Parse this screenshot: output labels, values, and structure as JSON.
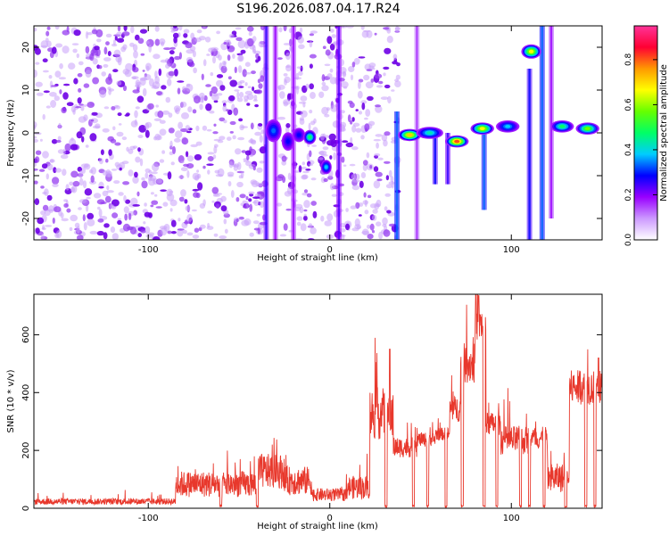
{
  "title": "S196.2026.087.04.17.R24",
  "chart_data": [
    {
      "type": "heatmap",
      "xlabel": "Height of straight line (km)",
      "ylabel": "Frequency (Hz)",
      "xlim": [
        -163,
        150
      ],
      "ylim": [
        -25,
        25
      ],
      "xticks": [
        -100,
        0,
        100
      ],
      "yticks": [
        -20,
        -10,
        0,
        10,
        20
      ],
      "colorbar": {
        "label": "Normalized spectral amplitude",
        "range": [
          0,
          0.95
        ],
        "ticks": [
          "0.0",
          "0.2",
          "0.4",
          "0.6",
          "0.8"
        ],
        "colors": [
          "#ffffff",
          "#cc99ff",
          "#9900ff",
          "#0000ff",
          "#00ccff",
          "#00ff66",
          "#66ff00",
          "#ffff00",
          "#ff9900",
          "#ff0033",
          "#ff3399"
        ]
      },
      "noise_regions_km": [
        [
          -163,
          -35
        ],
        [
          -28,
          -8
        ],
        [
          -5,
          28
        ],
        [
          30,
          38
        ]
      ],
      "columns": [
        {
          "x": -35,
          "ymin": -25,
          "ymax": 25,
          "level": 0.22
        },
        {
          "x": -30,
          "ymin": -25,
          "ymax": 25,
          "level": 0.15
        },
        {
          "x": -20,
          "ymin": -25,
          "ymax": 25,
          "level": 0.15
        },
        {
          "x": 5,
          "ymin": -25,
          "ymax": 25,
          "level": 0.2
        },
        {
          "x": 37,
          "ymin": -25,
          "ymax": 5,
          "level": 0.3
        },
        {
          "x": 48,
          "ymin": -25,
          "ymax": 25,
          "level": 0.12
        },
        {
          "x": 58,
          "ymin": -12,
          "ymax": 0,
          "level": 0.25
        },
        {
          "x": 65,
          "ymin": -12,
          "ymax": 0,
          "level": 0.22
        },
        {
          "x": 85,
          "ymin": -18,
          "ymax": 0,
          "level": 0.3
        },
        {
          "x": 110,
          "ymin": -25,
          "ymax": 15,
          "level": 0.25
        },
        {
          "x": 117,
          "ymin": -25,
          "ymax": 25,
          "level": 0.3
        },
        {
          "x": 122,
          "ymin": -20,
          "ymax": 25,
          "level": 0.15
        }
      ],
      "blobs": [
        {
          "x": -31,
          "y": 0.5,
          "w": 8,
          "h": 5,
          "amp": 0.35
        },
        {
          "x": -23,
          "y": -2.0,
          "w": 6,
          "h": 4,
          "amp": 0.3
        },
        {
          "x": -17,
          "y": -0.5,
          "w": 6,
          "h": 3,
          "amp": 0.3
        },
        {
          "x": -11,
          "y": -1.0,
          "w": 6,
          "h": 3,
          "amp": 0.5
        },
        {
          "x": -2,
          "y": -8.0,
          "w": 5,
          "h": 3,
          "amp": 0.4
        },
        {
          "x": 44,
          "y": -0.5,
          "w": 12,
          "h": 2.5,
          "amp": 0.75
        },
        {
          "x": 55,
          "y": 0.0,
          "w": 14,
          "h": 2.5,
          "amp": 0.45
        },
        {
          "x": 70,
          "y": -2.0,
          "w": 12,
          "h": 2.5,
          "amp": 0.85
        },
        {
          "x": 84,
          "y": 1.0,
          "w": 12,
          "h": 2.5,
          "amp": 0.7
        },
        {
          "x": 98,
          "y": 1.5,
          "w": 12,
          "h": 2.5,
          "amp": 0.4
        },
        {
          "x": 111,
          "y": 19.0,
          "w": 10,
          "h": 3,
          "amp": 0.7
        },
        {
          "x": 128,
          "y": 1.5,
          "w": 12,
          "h": 2.5,
          "amp": 0.5
        },
        {
          "x": 142,
          "y": 1.0,
          "w": 12,
          "h": 2.5,
          "amp": 0.6
        }
      ]
    },
    {
      "type": "line",
      "xlabel": "Height of straight line (km)",
      "ylabel": "SNR (10 * v/v)",
      "xlim": [
        -163,
        150
      ],
      "ylim": [
        0,
        740
      ],
      "xticks": [
        -100,
        0,
        100
      ],
      "yticks": [
        0,
        200,
        400,
        600
      ],
      "color": "#e8382c",
      "segments": [
        {
          "x0": -163,
          "x1": -85,
          "base": 20,
          "noise": 22
        },
        {
          "x0": -85,
          "x1": -40,
          "base": 70,
          "noise": 90
        },
        {
          "x0": -40,
          "x1": -25,
          "base": 110,
          "noise": 120
        },
        {
          "x0": -25,
          "x1": -10,
          "base": 80,
          "noise": 100
        },
        {
          "x0": -10,
          "x1": 10,
          "base": 40,
          "noise": 45
        },
        {
          "x0": 10,
          "x1": 22,
          "base": 60,
          "noise": 80
        },
        {
          "x0": 22,
          "x1": 35,
          "base": 300,
          "noise": 180
        },
        {
          "x0": 35,
          "x1": 48,
          "base": 200,
          "noise": 70
        },
        {
          "x0": 48,
          "x1": 58,
          "base": 230,
          "noise": 50
        },
        {
          "x0": 58,
          "x1": 66,
          "base": 250,
          "noise": 45
        },
        {
          "x0": 66,
          "x1": 72,
          "base": 330,
          "noise": 90
        },
        {
          "x0": 72,
          "x1": 80,
          "base": 480,
          "noise": 140
        },
        {
          "x0": 80,
          "x1": 86,
          "base": 620,
          "noise": 120
        },
        {
          "x0": 86,
          "x1": 94,
          "base": 280,
          "noise": 80
        },
        {
          "x0": 94,
          "x1": 110,
          "base": 220,
          "noise": 100
        },
        {
          "x0": 110,
          "x1": 120,
          "base": 230,
          "noise": 80
        },
        {
          "x0": 120,
          "x1": 132,
          "base": 90,
          "noise": 100
        },
        {
          "x0": 132,
          "x1": 150,
          "base": 400,
          "noise": 120
        }
      ],
      "dropouts_km": [
        -60,
        -40,
        31,
        46,
        54,
        64,
        73,
        85,
        92,
        105,
        110,
        118,
        130,
        141,
        146
      ],
      "spikes": [
        {
          "x": 80.5,
          "y": 740
        },
        {
          "x": 82,
          "y": 735
        },
        {
          "x": 33,
          "y": 550
        },
        {
          "x": 148,
          "y": 520
        }
      ]
    }
  ]
}
